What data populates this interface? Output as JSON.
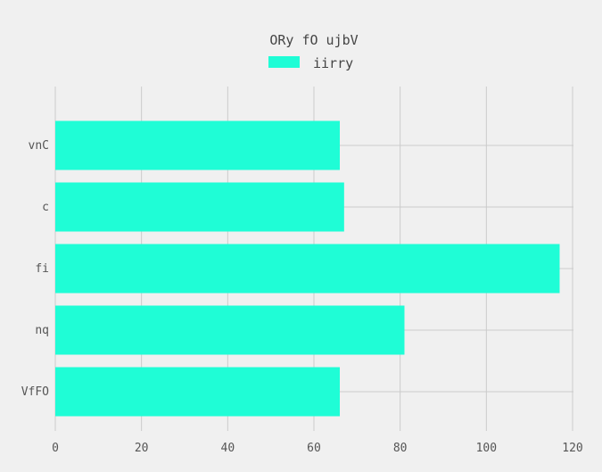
{
  "chart_data": {
    "type": "bar",
    "orientation": "horizontal",
    "title": "ORy fO ujbV",
    "xlabel": "",
    "ylabel": "",
    "categories": [
      "vnC",
      "c",
      "fi",
      "nq",
      "VfFO"
    ],
    "series": [
      {
        "name": "iirry",
        "color": "#1ffdd6",
        "values": [
          66,
          67,
          117,
          81,
          66
        ]
      }
    ],
    "xlim": [
      0,
      120
    ],
    "xticks": [
      0,
      20,
      40,
      60,
      80,
      100,
      120
    ],
    "grid": true,
    "legend_position": "top-center"
  }
}
